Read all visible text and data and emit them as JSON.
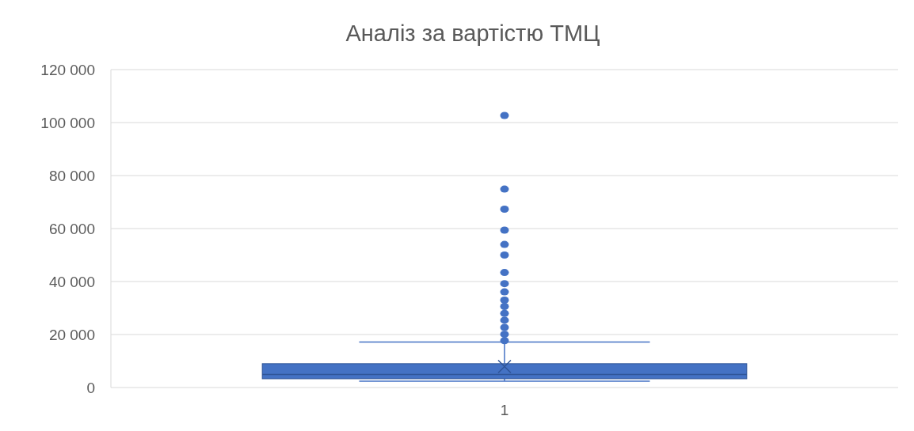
{
  "chart_data": {
    "type": "box",
    "title": "Аналіз за вартістю ТМЦ",
    "categories": [
      "1"
    ],
    "boxes": [
      {
        "low": 2400,
        "q1": 3300,
        "median": 4900,
        "q3": 9000,
        "high": 17200,
        "mean": 7900,
        "outliers": [
          17700,
          20100,
          22700,
          25400,
          28000,
          30600,
          33000,
          36100,
          39200,
          43400,
          50000,
          54000,
          59400,
          67300,
          74900,
          102700
        ]
      }
    ],
    "color": "#4472c4",
    "ylim": [
      0,
      120000
    ],
    "yticks": [
      {
        "value": 0,
        "label": "0"
      },
      {
        "value": 20000,
        "label": "20 000"
      },
      {
        "value": 40000,
        "label": "40 000"
      },
      {
        "value": 60000,
        "label": "60 000"
      },
      {
        "value": 80000,
        "label": "80 000"
      },
      {
        "value": 100000,
        "label": "100 000"
      },
      {
        "value": 120000,
        "label": "120 000"
      }
    ],
    "grid": "y",
    "marker": "circle"
  }
}
